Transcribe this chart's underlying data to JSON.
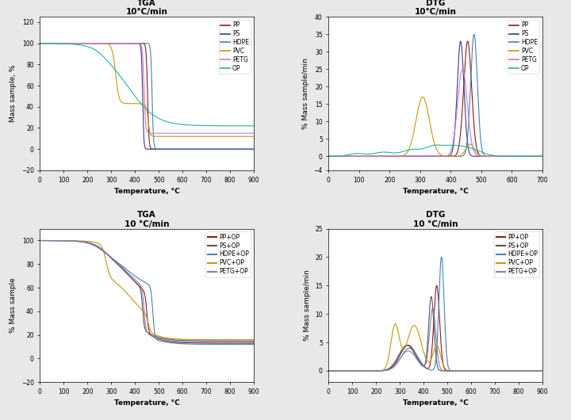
{
  "tga1_title": "TGA\n10°C/min",
  "dtg1_title": "DTG\n10°C/min",
  "tga2_title": "TGA\n10 °C/min",
  "dtg2_title": "DTG\n10 °C/min",
  "tga1_ylabel": "Mass sample, %",
  "tga2_ylabel": "% Mass sample",
  "dtg1_ylabel": "% Mass sample/min",
  "dtg2_ylabel": "% Mass sample/min",
  "xlabel": "Temperature, °C",
  "tga1_legend": [
    "PP",
    "PS",
    "HDPE",
    "PVC",
    "PETG",
    "OP"
  ],
  "tga2_legend": [
    "PP+OP",
    "PS+OP",
    "HDPE+OP",
    "PVC+OP",
    "PETG+OP"
  ],
  "colors_tga1": [
    "#8B1A1A",
    "#3A3A8B",
    "#4682B4",
    "#C8960C",
    "#CC77CC",
    "#20B2AA"
  ],
  "colors_tga2": [
    "#8B1A1A",
    "#555555",
    "#4682B4",
    "#C8960C",
    "#8B7BB5"
  ],
  "tga1_xlim": [
    0,
    900
  ],
  "tga1_ylim": [
    -20,
    125
  ],
  "dtg1_xlim": [
    0,
    700
  ],
  "dtg1_ylim": [
    -4,
    40
  ],
  "tga2_xlim": [
    0,
    900
  ],
  "tga2_ylim": [
    -20,
    110
  ],
  "dtg2_xlim": [
    0,
    900
  ],
  "dtg2_ylim": [
    -2,
    25
  ],
  "bg_color": "#e8e8e8"
}
